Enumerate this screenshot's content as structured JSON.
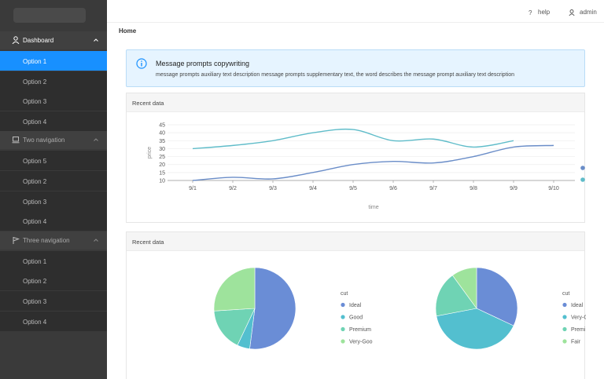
{
  "header": {
    "help_label": "help",
    "admin_label": "admin"
  },
  "breadcrumb": "Home",
  "sidebar": {
    "groups": [
      {
        "label": "Dashboard",
        "icon": "user-icon",
        "expanded": true,
        "items": [
          {
            "label": "Option 1",
            "active": true
          },
          {
            "label": "Option 2"
          },
          {
            "label": "Option 3"
          },
          {
            "label": "Option 4"
          }
        ]
      },
      {
        "label": "Two navigation",
        "icon": "laptop-icon",
        "expanded": true,
        "items": [
          {
            "label": "Option 5"
          },
          {
            "label": "Option 2"
          },
          {
            "label": "Option 3"
          },
          {
            "label": "Option 4"
          }
        ]
      },
      {
        "label": "Three navigation",
        "icon": "flag-icon",
        "expanded": true,
        "items": [
          {
            "label": "Option 1"
          },
          {
            "label": "Option 2"
          },
          {
            "label": "Option 3"
          },
          {
            "label": "Option 4"
          }
        ]
      }
    ]
  },
  "alert": {
    "title": "Message prompts copywriting",
    "description": "message prompts auxiliary text description message prompts supplementary text, the word describes the message prompt auxiliary text description"
  },
  "colors": {
    "accent": "#1890ff",
    "series1": "#5fbcc9",
    "series2": "#6a8dc8",
    "pie_ideal": "#6a8dd6",
    "pie_good": "#53bfcf",
    "pie_premium": "#6fd3b4",
    "pie_verygood": "#9ee39c"
  },
  "cards": [
    {
      "title": "Recent data"
    },
    {
      "title": "Recent data"
    }
  ],
  "chart_data": [
    {
      "type": "line",
      "x": [
        "9/1",
        "9/2",
        "9/3",
        "9/4",
        "9/5",
        "9/6",
        "9/7",
        "9/8",
        "9/9",
        "9/10"
      ],
      "xlabel": "time",
      "ylabel": "price",
      "ylim": [
        10,
        45
      ],
      "yticks": [
        10,
        15,
        20,
        25,
        30,
        35,
        40,
        45
      ],
      "series": [
        {
          "values": [
            30,
            32,
            35,
            40,
            42,
            35,
            36,
            31,
            35,
            null
          ],
          "color": "#5fbcc9"
        },
        {
          "values": [
            10,
            12,
            11,
            15,
            20,
            22,
            21,
            25,
            31,
            32
          ],
          "color": "#6a8dc8"
        }
      ],
      "legend_placement": "right"
    },
    {
      "type": "pie",
      "legend_title": "cut",
      "labels": [
        "Ideal",
        "Good",
        "Premium",
        "Very-Goo"
      ],
      "values": [
        52,
        5,
        17,
        26
      ],
      "colors": [
        "#6a8dd6",
        "#53bfcf",
        "#6fd3b4",
        "#9ee39c"
      ]
    },
    {
      "type": "pie",
      "legend_title": "cut",
      "labels": [
        "Ideal",
        "Very-G",
        "Premi",
        "Fair"
      ],
      "values": [
        32,
        40,
        18,
        10
      ],
      "colors": [
        "#6a8dd6",
        "#53bfcf",
        "#6fd3b4",
        "#9ee39c"
      ]
    }
  ]
}
